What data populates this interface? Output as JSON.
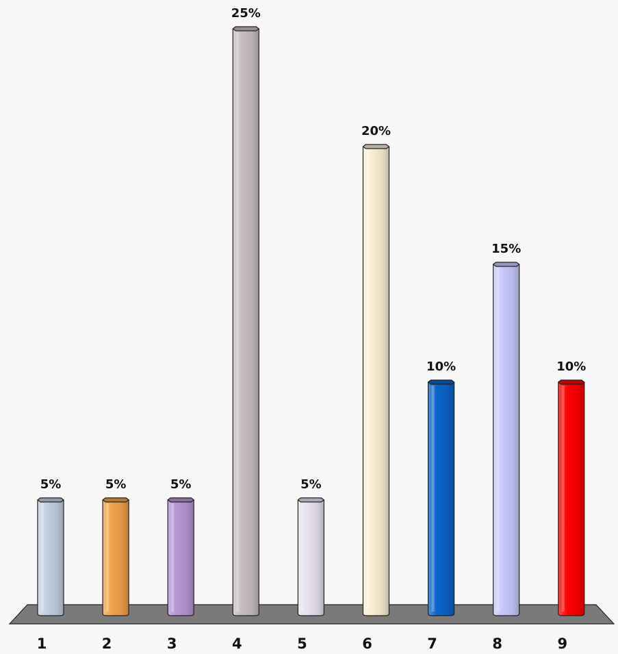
{
  "chart_data": {
    "type": "bar",
    "categories": [
      "1",
      "2",
      "3",
      "4",
      "5",
      "6",
      "7",
      "8",
      "9"
    ],
    "values": [
      5,
      5,
      5,
      25,
      5,
      20,
      10,
      15,
      10
    ],
    "data_labels": [
      "5%",
      "5%",
      "5%",
      "25%",
      "5%",
      "20%",
      "10%",
      "15%",
      "10%"
    ],
    "value_unit": "%",
    "title": "",
    "xlabel": "",
    "ylabel": "",
    "ylim": [
      0,
      25
    ],
    "grid": false,
    "legend": "none",
    "style": "3d-cylinder",
    "colors": [
      "#c3d0e0",
      "#f0a24c",
      "#b596d2",
      "#c7bfbf",
      "#e6e1ee",
      "#f7eed4",
      "#0b63c8",
      "#c8c9fb",
      "#ff0000"
    ],
    "floor_color": "#7a7a7a",
    "background": "#f7f7f7"
  }
}
